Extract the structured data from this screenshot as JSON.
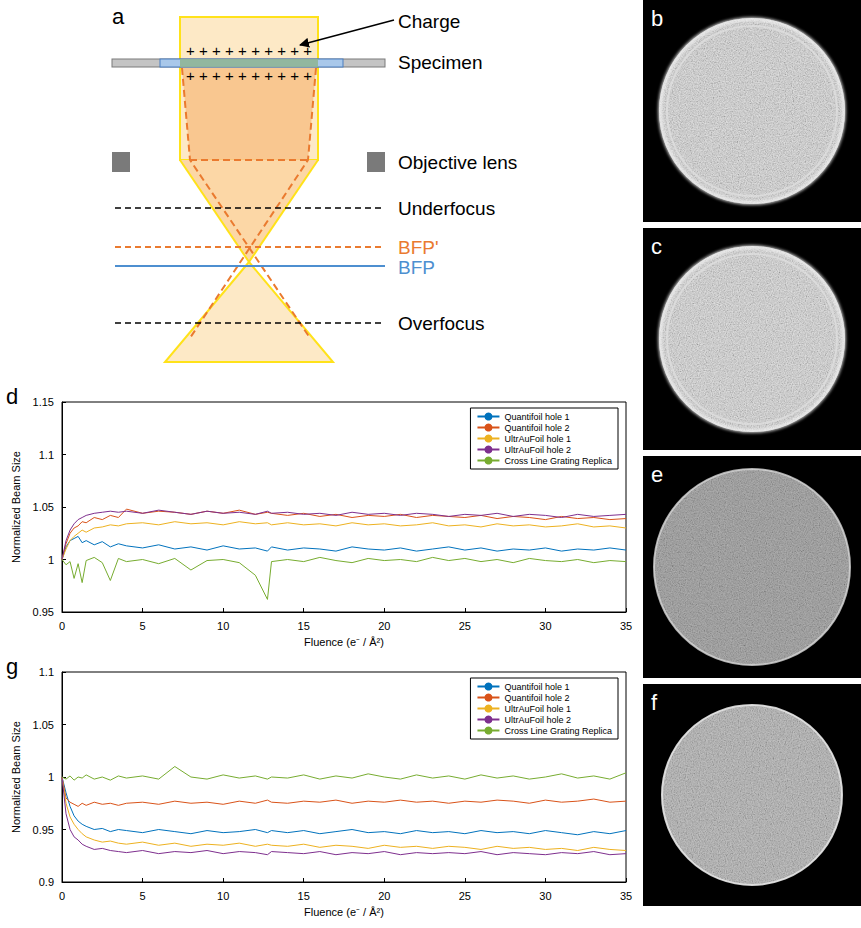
{
  "diagram": {
    "letter": "a",
    "charge": "Charge",
    "charge_marks": "++++++++++",
    "specimen": "Specimen",
    "objective_lens": "Objective lens",
    "underfocus": "Underfocus",
    "bfp_prime": "BFP'",
    "bfp": "BFP",
    "overfocus": "Overfocus"
  },
  "images": [
    {
      "letter": "b"
    },
    {
      "letter": "c"
    },
    {
      "letter": "e"
    },
    {
      "letter": "f"
    }
  ],
  "chart_data": [
    {
      "panel": "d",
      "type": "line",
      "x_label": "Fluence (e⁻ / Å²)",
      "y_label": "Normalized Beam Size",
      "xlim": [
        0,
        35
      ],
      "ylim": [
        0.95,
        1.15
      ],
      "xticks": [
        0,
        5,
        10,
        15,
        20,
        25,
        30,
        35
      ],
      "yticks": [
        0.95,
        1,
        1.05,
        1.1,
        1.15
      ],
      "grid": false,
      "legend": "top-right",
      "x": [
        0,
        0.25,
        0.5,
        0.75,
        1,
        1.25,
        1.5,
        2,
        2.5,
        3,
        3.5,
        4,
        5,
        6,
        7,
        8,
        9,
        10,
        11,
        12,
        12.75,
        13,
        14,
        15,
        16,
        17,
        18,
        19,
        20,
        21,
        22,
        23,
        24,
        25,
        26,
        27,
        28,
        29,
        30,
        31,
        32,
        33,
        34,
        35
      ],
      "series": [
        {
          "name": "Quantifoil hole 1",
          "color": "#0072BD",
          "values": [
            1.0,
            1.012,
            1.018,
            1.02,
            1.022,
            1.016,
            1.018,
            1.014,
            1.017,
            1.012,
            1.015,
            1.013,
            1.011,
            1.014,
            1.01,
            1.012,
            1.009,
            1.013,
            1.01,
            1.011,
            1.008,
            1.012,
            1.009,
            1.011,
            1.01,
            1.008,
            1.012,
            1.01,
            1.009,
            1.011,
            1.008,
            1.01,
            1.012,
            1.009,
            1.011,
            1.008,
            1.01,
            1.009,
            1.011,
            1.008,
            1.01,
            1.009,
            1.011,
            1.009
          ]
        },
        {
          "name": "Quantifoil hole 2",
          "color": "#D95319",
          "values": [
            1.0,
            1.015,
            1.025,
            1.03,
            1.032,
            1.036,
            1.035,
            1.04,
            1.038,
            1.042,
            1.04,
            1.048,
            1.044,
            1.046,
            1.045,
            1.043,
            1.046,
            1.044,
            1.047,
            1.043,
            1.045,
            1.044,
            1.042,
            1.044,
            1.041,
            1.043,
            1.04,
            1.042,
            1.041,
            1.043,
            1.04,
            1.042,
            1.041,
            1.04,
            1.042,
            1.039,
            1.041,
            1.04,
            1.038,
            1.041,
            1.039,
            1.04,
            1.038,
            1.039
          ]
        },
        {
          "name": "UltrAuFoil hole 1",
          "color": "#EDB120",
          "values": [
            1.0,
            1.01,
            1.018,
            1.022,
            1.025,
            1.028,
            1.026,
            1.03,
            1.031,
            1.033,
            1.032,
            1.034,
            1.035,
            1.033,
            1.036,
            1.034,
            1.035,
            1.033,
            1.036,
            1.034,
            1.035,
            1.033,
            1.035,
            1.033,
            1.034,
            1.032,
            1.035,
            1.033,
            1.034,
            1.032,
            1.033,
            1.035,
            1.032,
            1.033,
            1.031,
            1.034,
            1.032,
            1.033,
            1.031,
            1.032,
            1.034,
            1.031,
            1.032,
            1.03
          ]
        },
        {
          "name": "UltrAuFoil hole 2",
          "color": "#7E2F8E",
          "values": [
            1.0,
            1.018,
            1.028,
            1.034,
            1.038,
            1.04,
            1.042,
            1.044,
            1.045,
            1.046,
            1.045,
            1.046,
            1.044,
            1.047,
            1.045,
            1.043,
            1.046,
            1.044,
            1.045,
            1.043,
            1.046,
            1.044,
            1.045,
            1.043,
            1.044,
            1.042,
            1.045,
            1.043,
            1.044,
            1.042,
            1.044,
            1.043,
            1.041,
            1.043,
            1.042,
            1.044,
            1.041,
            1.043,
            1.042,
            1.04,
            1.043,
            1.041,
            1.042,
            1.043
          ]
        },
        {
          "name": "Cross Line Grating Replica",
          "color": "#77AC30",
          "values": [
            1.0,
            0.995,
            0.998,
            0.982,
            0.996,
            0.978,
            0.999,
            1.002,
            0.997,
            0.98,
            1.001,
            0.998,
            1.0,
            0.996,
            1.001,
            0.99,
            0.999,
            1.0,
            0.997,
            0.985,
            0.962,
            0.998,
            1.0,
            0.998,
            1.002,
            0.999,
            0.997,
            1.001,
            0.999,
            1.0,
            0.998,
            1.002,
            0.999,
            1.001,
            0.998,
            1.0,
            0.997,
            1.001,
            0.999,
            0.998,
            1.0,
            0.997,
            0.999,
            0.998
          ]
        }
      ]
    },
    {
      "panel": "g",
      "type": "line",
      "x_label": "Fluence (e⁻ / Å²)",
      "y_label": "Normalized Beam Size",
      "xlim": [
        0,
        35
      ],
      "ylim": [
        0.9,
        1.1
      ],
      "xticks": [
        0,
        5,
        10,
        15,
        20,
        25,
        30,
        35
      ],
      "yticks": [
        0.9,
        0.95,
        1,
        1.05,
        1.1
      ],
      "grid": false,
      "legend": "top-right",
      "x": [
        0,
        0.25,
        0.5,
        0.75,
        1,
        1.25,
        1.5,
        2,
        2.5,
        3,
        3.5,
        4,
        5,
        6,
        7,
        8,
        9,
        10,
        11,
        12,
        12.75,
        13,
        14,
        15,
        16,
        17,
        18,
        19,
        20,
        21,
        22,
        23,
        24,
        25,
        26,
        27,
        28,
        29,
        30,
        31,
        32,
        33,
        34,
        35
      ],
      "series": [
        {
          "name": "Quantifoil hole 1",
          "color": "#0072BD",
          "values": [
            1.0,
            0.985,
            0.972,
            0.963,
            0.958,
            0.955,
            0.953,
            0.95,
            0.951,
            0.948,
            0.95,
            0.949,
            0.947,
            0.95,
            0.948,
            0.946,
            0.949,
            0.947,
            0.948,
            0.95,
            0.947,
            0.949,
            0.947,
            0.949,
            0.946,
            0.948,
            0.95,
            0.947,
            0.948,
            0.946,
            0.949,
            0.947,
            0.948,
            0.946,
            0.949,
            0.947,
            0.948,
            0.946,
            0.949,
            0.947,
            0.945,
            0.948,
            0.946,
            0.949
          ]
        },
        {
          "name": "Quantifoil hole 2",
          "color": "#D95319",
          "values": [
            1.0,
            0.98,
            0.976,
            0.974,
            0.972,
            0.975,
            0.973,
            0.976,
            0.974,
            0.975,
            0.973,
            0.975,
            0.976,
            0.974,
            0.977,
            0.975,
            0.976,
            0.974,
            0.977,
            0.975,
            0.978,
            0.976,
            0.975,
            0.977,
            0.976,
            0.978,
            0.975,
            0.977,
            0.976,
            0.978,
            0.976,
            0.977,
            0.975,
            0.977,
            0.976,
            0.978,
            0.977,
            0.975,
            0.978,
            0.976,
            0.977,
            0.979,
            0.976,
            0.977
          ]
        },
        {
          "name": "UltrAuFoil hole 1",
          "color": "#EDB120",
          "values": [
            1.0,
            0.975,
            0.962,
            0.955,
            0.95,
            0.946,
            0.943,
            0.94,
            0.938,
            0.939,
            0.937,
            0.936,
            0.938,
            0.935,
            0.937,
            0.934,
            0.936,
            0.935,
            0.937,
            0.934,
            0.936,
            0.935,
            0.934,
            0.936,
            0.933,
            0.935,
            0.934,
            0.932,
            0.935,
            0.933,
            0.934,
            0.932,
            0.934,
            0.933,
            0.931,
            0.934,
            0.932,
            0.933,
            0.931,
            0.932,
            0.93,
            0.933,
            0.931,
            0.93
          ]
        },
        {
          "name": "UltrAuFoil hole 2",
          "color": "#7E2F8E",
          "values": [
            1.0,
            0.965,
            0.95,
            0.943,
            0.94,
            0.936,
            0.934,
            0.931,
            0.932,
            0.93,
            0.929,
            0.928,
            0.93,
            0.927,
            0.929,
            0.928,
            0.93,
            0.927,
            0.929,
            0.928,
            0.926,
            0.929,
            0.928,
            0.927,
            0.929,
            0.926,
            0.928,
            0.927,
            0.929,
            0.926,
            0.928,
            0.927,
            0.928,
            0.927,
            0.929,
            0.926,
            0.928,
            0.927,
            0.926,
            0.928,
            0.927,
            0.929,
            0.926,
            0.927
          ]
        },
        {
          "name": "Cross Line Grating Replica",
          "color": "#77AC30",
          "values": [
            1.0,
            0.998,
            1.001,
            0.997,
            1.0,
            0.999,
            1.002,
            0.998,
            1.0,
            0.997,
            1.001,
            0.999,
            1.001,
            0.998,
            1.01,
            1.0,
            0.998,
            1.002,
            0.999,
            1.001,
            0.998,
            1.0,
            0.999,
            1.002,
            0.998,
            1.001,
            0.999,
            1.003,
            1.0,
            0.998,
            1.002,
            0.999,
            1.001,
            0.998,
            1.002,
            0.999,
            1.001,
            0.998,
            1.0,
            1.003,
            0.999,
            1.001,
            0.998,
            1.004
          ]
        }
      ]
    }
  ]
}
